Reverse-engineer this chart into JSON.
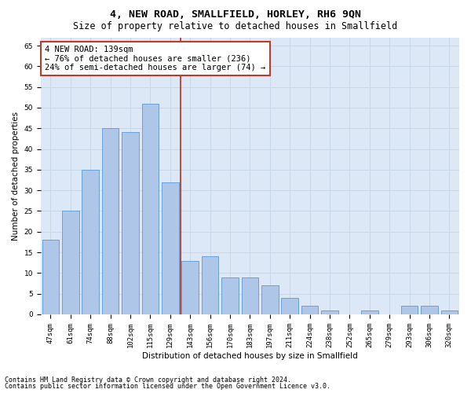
{
  "title": "4, NEW ROAD, SMALLFIELD, HORLEY, RH6 9QN",
  "subtitle": "Size of property relative to detached houses in Smallfield",
  "xlabel": "Distribution of detached houses by size in Smallfield",
  "ylabel": "Number of detached properties",
  "categories": [
    "47sqm",
    "61sqm",
    "74sqm",
    "88sqm",
    "102sqm",
    "115sqm",
    "129sqm",
    "143sqm",
    "156sqm",
    "170sqm",
    "183sqm",
    "197sqm",
    "211sqm",
    "224sqm",
    "238sqm",
    "252sqm",
    "265sqm",
    "279sqm",
    "293sqm",
    "306sqm",
    "320sqm"
  ],
  "values": [
    18,
    25,
    35,
    45,
    44,
    51,
    32,
    13,
    14,
    9,
    9,
    7,
    4,
    2,
    1,
    0,
    1,
    0,
    2,
    2,
    1
  ],
  "bar_color": "#aec6e8",
  "bar_edge_color": "#5b9bd5",
  "grid_color": "#c8d8e8",
  "background_color": "#dce8f5",
  "vline_x_index": 6.5,
  "vline_color": "#c0392b",
  "annotation_line1": "4 NEW ROAD: 139sqm",
  "annotation_line2": "← 76% of detached houses are smaller (236)",
  "annotation_line3": "24% of semi-detached houses are larger (74) →",
  "annotation_box_color": "#ffffff",
  "annotation_box_edge": "#c0392b",
  "ylim": [
    0,
    67
  ],
  "yticks": [
    0,
    5,
    10,
    15,
    20,
    25,
    30,
    35,
    40,
    45,
    50,
    55,
    60,
    65
  ],
  "footnote1": "Contains HM Land Registry data © Crown copyright and database right 2024.",
  "footnote2": "Contains public sector information licensed under the Open Government Licence v3.0.",
  "title_fontsize": 9.5,
  "subtitle_fontsize": 8.5,
  "axis_label_fontsize": 7.5,
  "tick_fontsize": 6.5,
  "annotation_fontsize": 7.5,
  "footnote_fontsize": 6.0,
  "ylabel_text": "Number of detached properties"
}
